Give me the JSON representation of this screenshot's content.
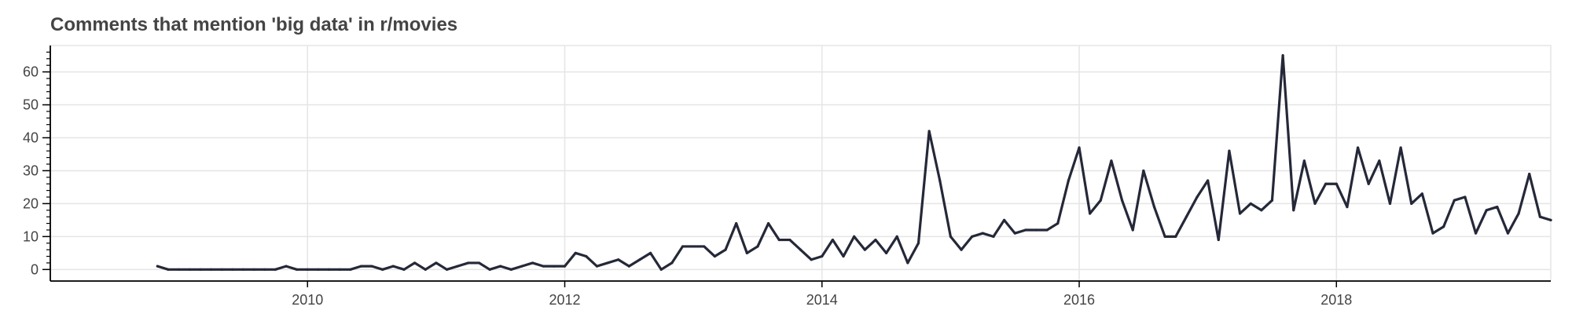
{
  "chart_data": {
    "type": "line",
    "title": "Comments that mention 'big data' in r/movies",
    "xlabel": "",
    "ylabel": "",
    "grid": true,
    "xlim": [
      "2008-01-01",
      "2019-09-01"
    ],
    "ylim": [
      -3.5,
      68
    ],
    "x_ticks": [
      "2010",
      "2012",
      "2014",
      "2016",
      "2018"
    ],
    "y_ticks": [
      "0",
      "10",
      "20",
      "30",
      "40",
      "50",
      "60"
    ],
    "colors": {
      "line": "#252838",
      "grid": "#e5e5e5",
      "axis": "#000000",
      "text": "#444444"
    },
    "series": [
      {
        "x": [
          "2008-11",
          "2008-12",
          "2009-01",
          "2009-02",
          "2009-03",
          "2009-04",
          "2009-05",
          "2009-06",
          "2009-07",
          "2009-08",
          "2009-09",
          "2009-10",
          "2009-11",
          "2009-12",
          "2010-01",
          "2010-02",
          "2010-03",
          "2010-04",
          "2010-05",
          "2010-06",
          "2010-07",
          "2010-08",
          "2010-09",
          "2010-10",
          "2010-11",
          "2010-12",
          "2011-01",
          "2011-02",
          "2011-03",
          "2011-04",
          "2011-05",
          "2011-06",
          "2011-07",
          "2011-08",
          "2011-09",
          "2011-10",
          "2011-11",
          "2011-12",
          "2012-01",
          "2012-02",
          "2012-03",
          "2012-04",
          "2012-05",
          "2012-06",
          "2012-07",
          "2012-08",
          "2012-09",
          "2012-10",
          "2012-11",
          "2012-12",
          "2013-01",
          "2013-02",
          "2013-03",
          "2013-04",
          "2013-05",
          "2013-06",
          "2013-07",
          "2013-08",
          "2013-09",
          "2013-10",
          "2013-11",
          "2013-12",
          "2014-01",
          "2014-02",
          "2014-03",
          "2014-04",
          "2014-05",
          "2014-06",
          "2014-07",
          "2014-08",
          "2014-09",
          "2014-10",
          "2014-11",
          "2014-12",
          "2015-01",
          "2015-02",
          "2015-03",
          "2015-04",
          "2015-05",
          "2015-06",
          "2015-07",
          "2015-08",
          "2015-09",
          "2015-10",
          "2015-11",
          "2015-12",
          "2016-01",
          "2016-02",
          "2016-03",
          "2016-04",
          "2016-05",
          "2016-06",
          "2016-07",
          "2016-08",
          "2016-09",
          "2016-10",
          "2016-11",
          "2016-12",
          "2017-01",
          "2017-02",
          "2017-03",
          "2017-04",
          "2017-05",
          "2017-06",
          "2017-07",
          "2017-08",
          "2017-09",
          "2017-10",
          "2017-11",
          "2017-12",
          "2018-01",
          "2018-02",
          "2018-03",
          "2018-04",
          "2018-05",
          "2018-06",
          "2018-07",
          "2018-08",
          "2018-09",
          "2018-10",
          "2018-11",
          "2018-12",
          "2019-01",
          "2019-02",
          "2019-03",
          "2019-04",
          "2019-05",
          "2019-06",
          "2019-07",
          "2019-08",
          "2019-09"
        ],
        "y": [
          1,
          0,
          0,
          0,
          0,
          0,
          0,
          0,
          0,
          0,
          0,
          0,
          1,
          0,
          0,
          0,
          0,
          0,
          0,
          1,
          1,
          0,
          1,
          0,
          2,
          0,
          2,
          0,
          1,
          2,
          2,
          0,
          1,
          0,
          1,
          2,
          1,
          1,
          1,
          5,
          4,
          1,
          2,
          3,
          1,
          3,
          5,
          0,
          2,
          7,
          7,
          7,
          4,
          6,
          14,
          5,
          7,
          14,
          9,
          9,
          6,
          3,
          4,
          9,
          4,
          10,
          6,
          9,
          5,
          10,
          2,
          8,
          42,
          27,
          10,
          6,
          10,
          11,
          10,
          15,
          11,
          12,
          12,
          12,
          14,
          27,
          37,
          17,
          21,
          33,
          21,
          12,
          30,
          19,
          10,
          10,
          16,
          22,
          27,
          9,
          36,
          17,
          20,
          18,
          21,
          65,
          18,
          33,
          20,
          26,
          26,
          19,
          37,
          26,
          33,
          20,
          37,
          20,
          23,
          11,
          13,
          21,
          22,
          11,
          18,
          19,
          11,
          17,
          29,
          16,
          15
        ]
      }
    ]
  }
}
